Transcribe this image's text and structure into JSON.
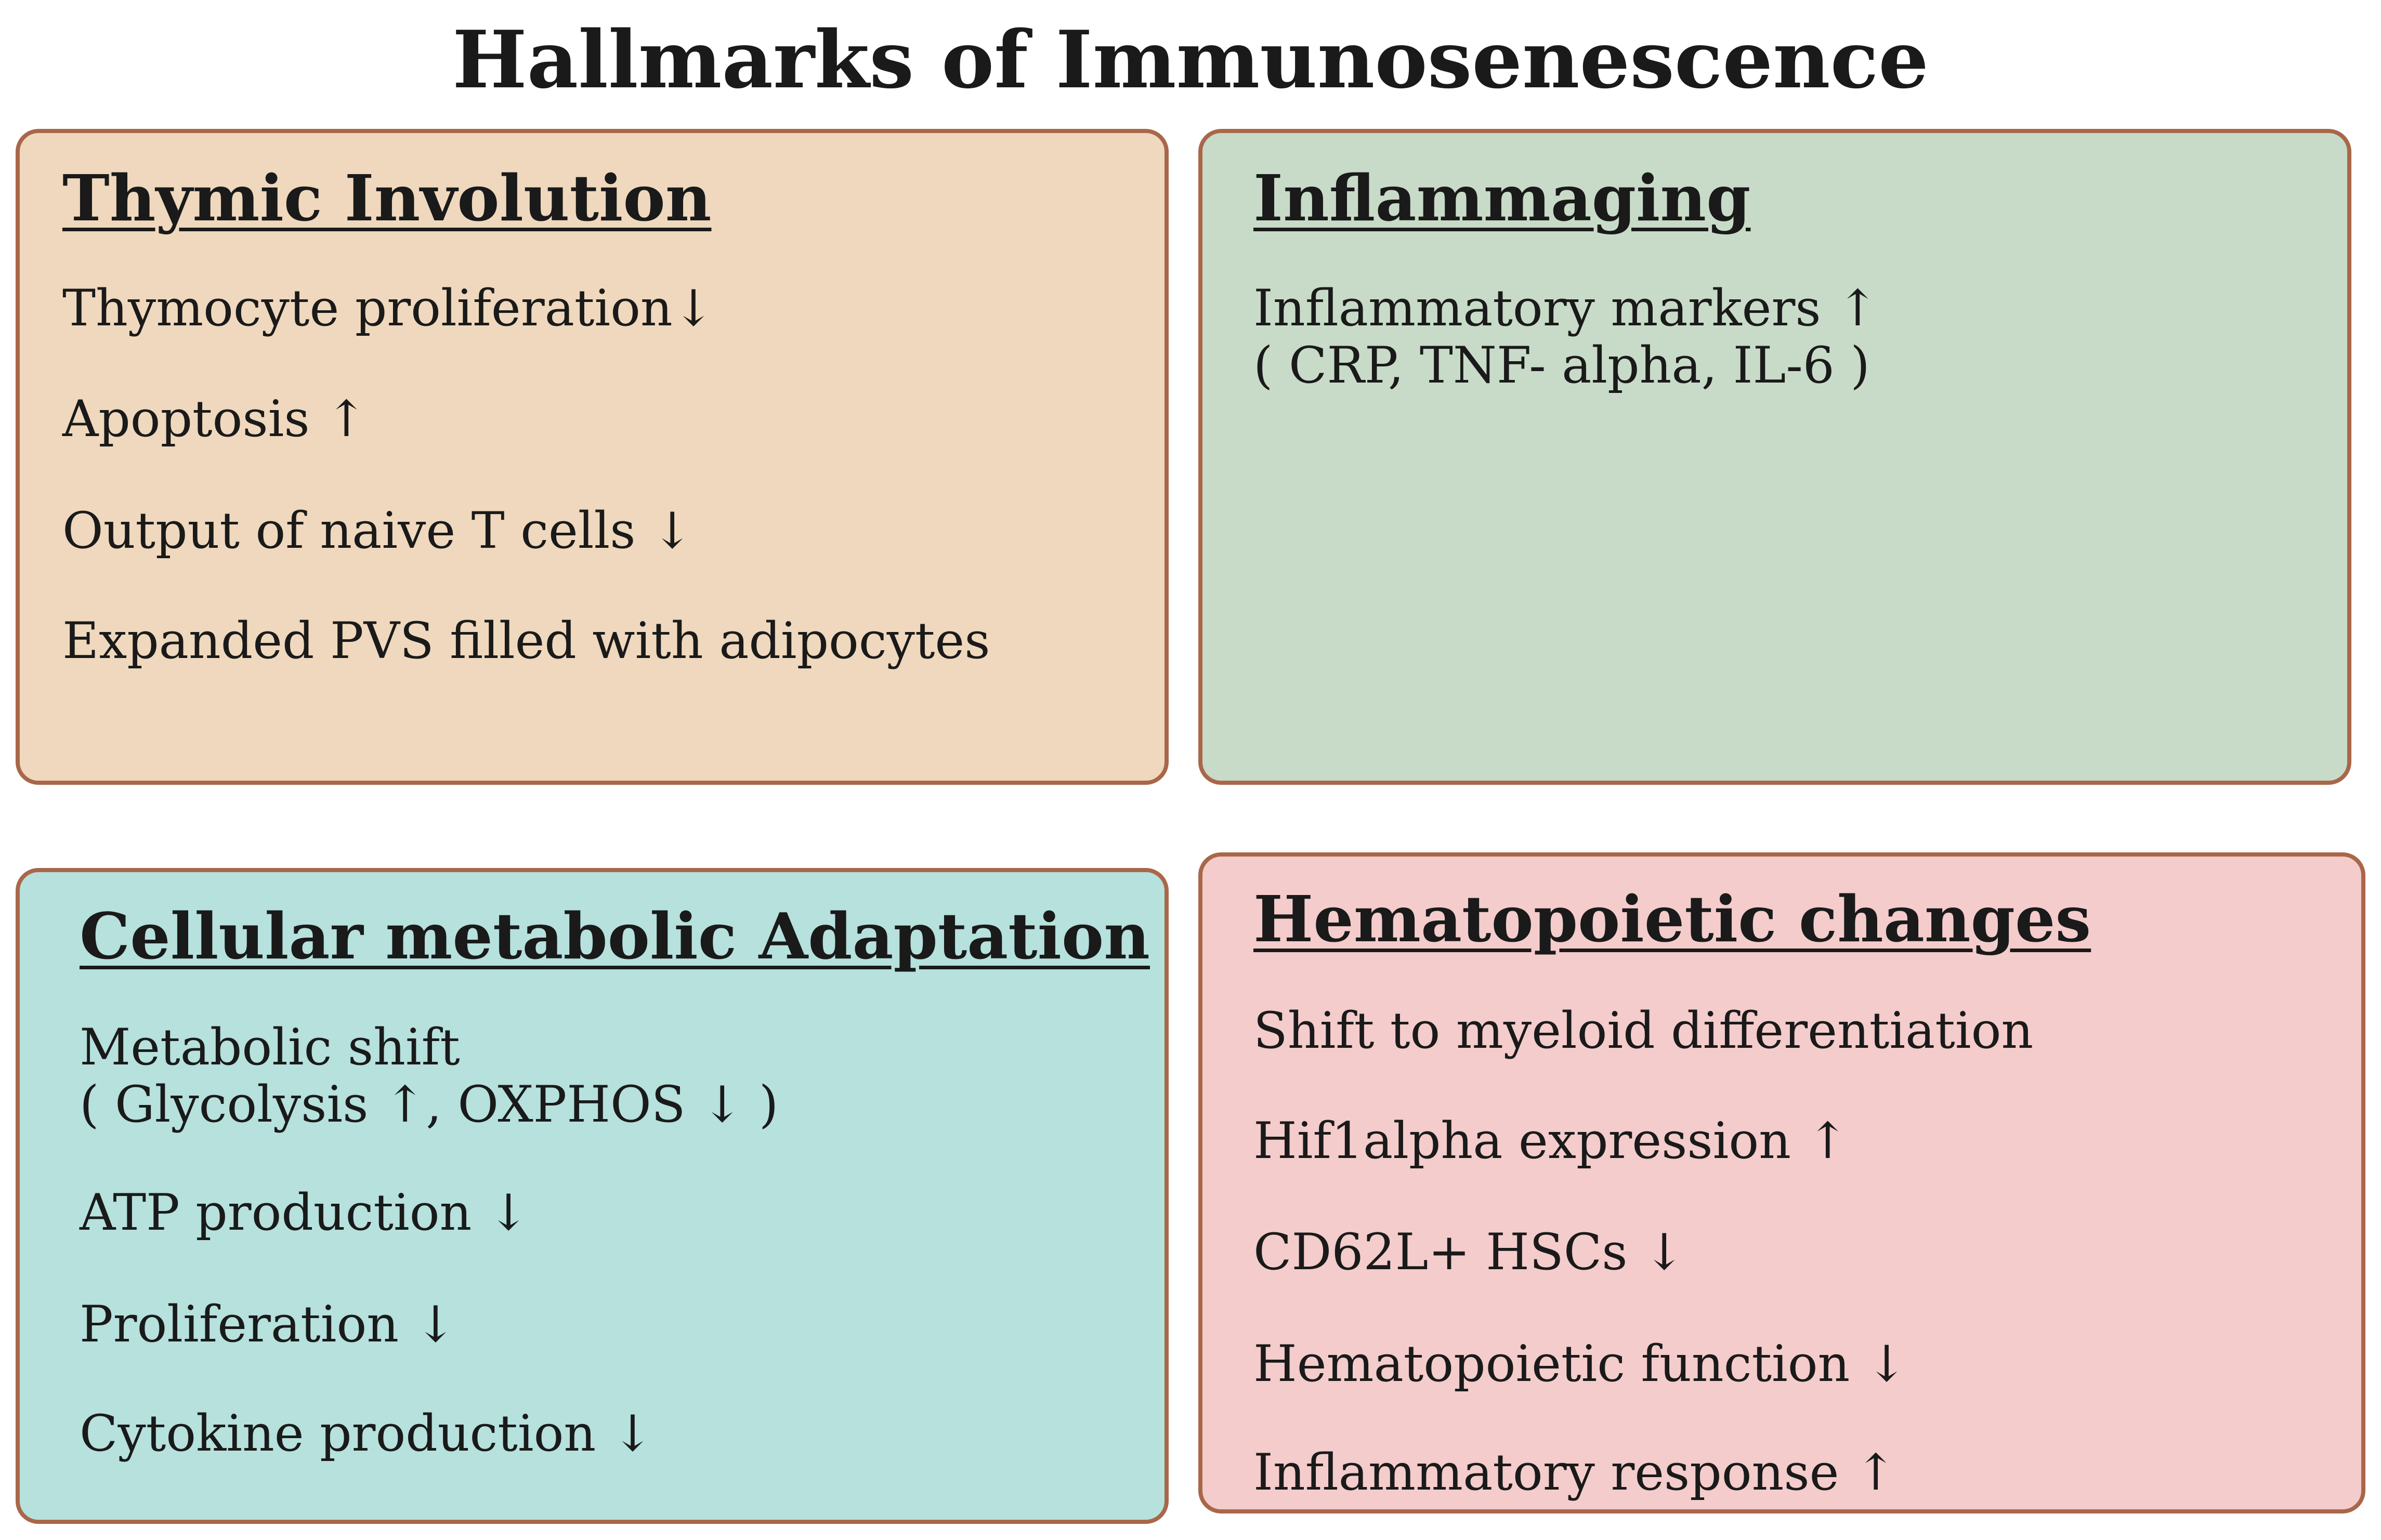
{
  "title": "Hallmarks of Immunosenescence",
  "panels": {
    "thymic": {
      "heading": "Thymic Involution",
      "items": [
        "Thymocyte proliferation↓",
        "Apoptosis ↑",
        "Output of naive T cells ↓",
        "Expanded PVS filled with adipocytes"
      ]
    },
    "inflammaging": {
      "heading": "Inflammaging",
      "items": [
        {
          "line1": "Inflammatory markers ↑",
          "line2": "( CRP, TNF- alpha, IL-6 )"
        }
      ]
    },
    "cellular": {
      "heading": "Cellular metabolic Adaptation",
      "items": [
        {
          "line1": "Metabolic shift",
          "line2": "( Glycolysis ↑, OXPHOS ↓ )"
        },
        "ATP production ↓",
        "Proliferation ↓",
        "Cytokine production ↓"
      ]
    },
    "hematopoietic": {
      "heading": "Hematopoietic changes",
      "items": [
        "Shift to myeloid differentiation",
        "Hif1alpha expression ↑",
        "CD62L+ HSCs ↓",
        "Hematopoietic function ↓",
        "Inflammatory response ↑"
      ]
    }
  }
}
